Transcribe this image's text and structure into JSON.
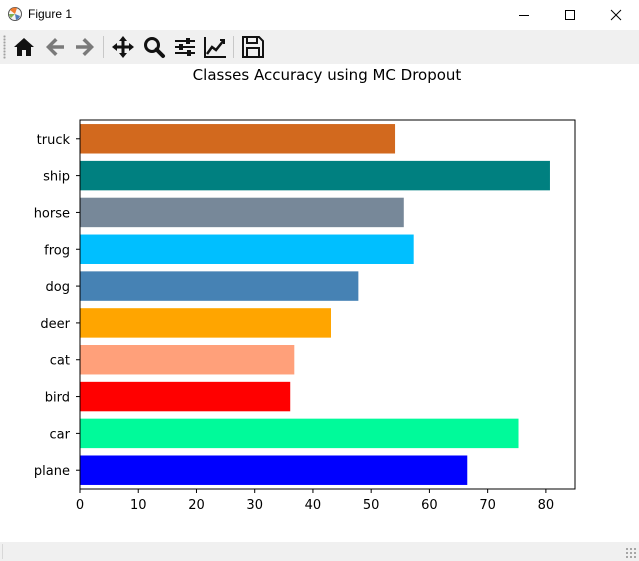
{
  "window": {
    "title": "Figure 1",
    "controls": {
      "minimize": "minimize",
      "maximize": "maximize",
      "close": "close"
    }
  },
  "toolbar": {
    "buttons": [
      {
        "name": "home",
        "icon": "home-icon"
      },
      {
        "name": "back",
        "icon": "arrow-left-icon"
      },
      {
        "name": "forward",
        "icon": "arrow-right-icon"
      },
      {
        "name": "pan",
        "icon": "move-icon"
      },
      {
        "name": "zoom",
        "icon": "magnifier-icon"
      },
      {
        "name": "configure-subplots",
        "icon": "sliders-icon"
      },
      {
        "name": "edit-axes",
        "icon": "line-chart-icon"
      },
      {
        "name": "save",
        "icon": "floppy-disk-icon"
      }
    ]
  },
  "chart_data": {
    "type": "bar",
    "orientation": "horizontal",
    "title": "Classes Accuracy using MC Dropout",
    "xlabel": "",
    "ylabel": "",
    "categories": [
      "plane",
      "car",
      "bird",
      "cat",
      "deer",
      "dog",
      "frog",
      "horse",
      "ship",
      "truck"
    ],
    "values": [
      66.5,
      75.3,
      36.1,
      36.8,
      43.1,
      47.8,
      57.3,
      55.6,
      80.7,
      54.1
    ],
    "colors": [
      "#0000ff",
      "#00fa9a",
      "#ff0000",
      "#ffa07a",
      "#ffa500",
      "#4682b4",
      "#00bfff",
      "#778899",
      "#008080",
      "#d2691e"
    ],
    "xlim": [
      0,
      85
    ],
    "xticks": [
      0,
      10,
      20,
      30,
      40,
      50,
      60,
      70,
      80
    ],
    "grid": false,
    "legend": "none"
  }
}
